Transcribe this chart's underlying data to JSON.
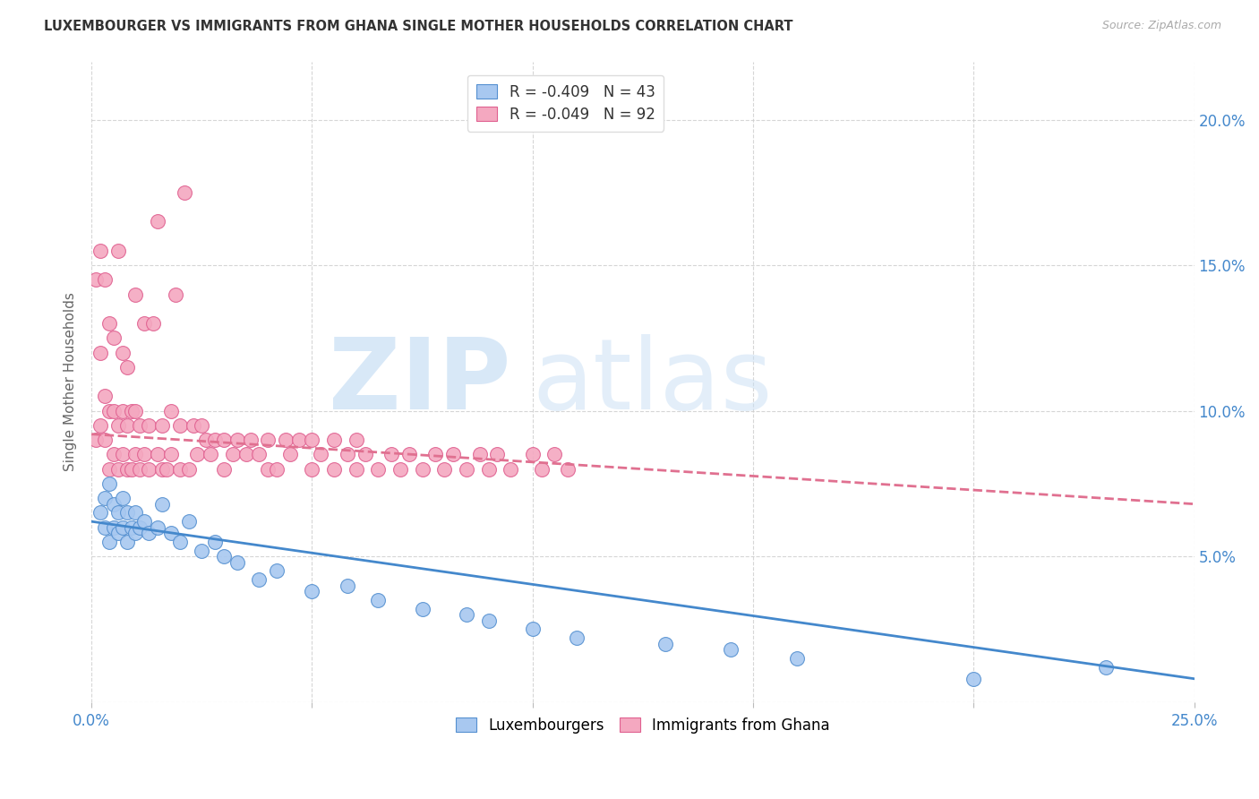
{
  "title": "LUXEMBOURGER VS IMMIGRANTS FROM GHANA SINGLE MOTHER HOUSEHOLDS CORRELATION CHART",
  "source": "Source: ZipAtlas.com",
  "ylabel": "Single Mother Households",
  "xlim": [
    0.0,
    0.25
  ],
  "ylim": [
    0.0,
    0.22
  ],
  "xtick_vals": [
    0.0,
    0.05,
    0.1,
    0.15,
    0.2,
    0.25
  ],
  "xtick_labels": [
    "0.0%",
    "",
    "",
    "",
    "",
    "25.0%"
  ],
  "ytick_vals": [
    0.0,
    0.05,
    0.1,
    0.15,
    0.2
  ],
  "ytick_labels": [
    "",
    "5.0%",
    "10.0%",
    "15.0%",
    "20.0%"
  ],
  "legend_blue_label": "R = -0.409   N = 43",
  "legend_pink_label": "R = -0.049   N = 92",
  "legend_labels_bottom": [
    "Luxembourgers",
    "Immigrants from Ghana"
  ],
  "blue_color": "#a8c8f0",
  "pink_color": "#f4a8c0",
  "blue_edge_color": "#5590d0",
  "pink_edge_color": "#e06090",
  "blue_line_color": "#4488cc",
  "pink_line_color": "#e07090",
  "watermark_zip_color": "#c8dff5",
  "watermark_atlas_color": "#c8dff5",
  "blue_trend_x": [
    0.0,
    0.25
  ],
  "blue_trend_y": [
    0.062,
    0.008
  ],
  "pink_trend_x": [
    0.0,
    0.25
  ],
  "pink_trend_y": [
    0.092,
    0.068
  ],
  "blue_points_x": [
    0.002,
    0.003,
    0.003,
    0.004,
    0.004,
    0.005,
    0.005,
    0.006,
    0.006,
    0.007,
    0.007,
    0.008,
    0.008,
    0.009,
    0.01,
    0.01,
    0.011,
    0.012,
    0.013,
    0.015,
    0.016,
    0.018,
    0.02,
    0.022,
    0.025,
    0.028,
    0.03,
    0.033,
    0.038,
    0.042,
    0.05,
    0.058,
    0.065,
    0.075,
    0.085,
    0.09,
    0.1,
    0.11,
    0.13,
    0.145,
    0.16,
    0.2,
    0.23
  ],
  "blue_points_y": [
    0.065,
    0.06,
    0.07,
    0.055,
    0.075,
    0.06,
    0.068,
    0.058,
    0.065,
    0.06,
    0.07,
    0.055,
    0.065,
    0.06,
    0.058,
    0.065,
    0.06,
    0.062,
    0.058,
    0.06,
    0.068,
    0.058,
    0.055,
    0.062,
    0.052,
    0.055,
    0.05,
    0.048,
    0.042,
    0.045,
    0.038,
    0.04,
    0.035,
    0.032,
    0.03,
    0.028,
    0.025,
    0.022,
    0.02,
    0.018,
    0.015,
    0.008,
    0.012
  ],
  "pink_points_x": [
    0.001,
    0.001,
    0.002,
    0.002,
    0.002,
    0.003,
    0.003,
    0.003,
    0.004,
    0.004,
    0.004,
    0.005,
    0.005,
    0.005,
    0.006,
    0.006,
    0.006,
    0.007,
    0.007,
    0.007,
    0.008,
    0.008,
    0.008,
    0.009,
    0.009,
    0.01,
    0.01,
    0.01,
    0.011,
    0.011,
    0.012,
    0.012,
    0.013,
    0.013,
    0.014,
    0.015,
    0.015,
    0.016,
    0.016,
    0.017,
    0.018,
    0.018,
    0.019,
    0.02,
    0.02,
    0.021,
    0.022,
    0.023,
    0.024,
    0.025,
    0.026,
    0.027,
    0.028,
    0.03,
    0.03,
    0.032,
    0.033,
    0.035,
    0.036,
    0.038,
    0.04,
    0.04,
    0.042,
    0.044,
    0.045,
    0.047,
    0.05,
    0.05,
    0.052,
    0.055,
    0.055,
    0.058,
    0.06,
    0.06,
    0.062,
    0.065,
    0.068,
    0.07,
    0.072,
    0.075,
    0.078,
    0.08,
    0.082,
    0.085,
    0.088,
    0.09,
    0.092,
    0.095,
    0.1,
    0.102,
    0.105,
    0.108
  ],
  "pink_points_y": [
    0.09,
    0.145,
    0.095,
    0.12,
    0.155,
    0.09,
    0.105,
    0.145,
    0.08,
    0.1,
    0.13,
    0.085,
    0.1,
    0.125,
    0.08,
    0.095,
    0.155,
    0.085,
    0.1,
    0.12,
    0.08,
    0.095,
    0.115,
    0.08,
    0.1,
    0.085,
    0.1,
    0.14,
    0.08,
    0.095,
    0.085,
    0.13,
    0.08,
    0.095,
    0.13,
    0.085,
    0.165,
    0.08,
    0.095,
    0.08,
    0.085,
    0.1,
    0.14,
    0.08,
    0.095,
    0.175,
    0.08,
    0.095,
    0.085,
    0.095,
    0.09,
    0.085,
    0.09,
    0.08,
    0.09,
    0.085,
    0.09,
    0.085,
    0.09,
    0.085,
    0.08,
    0.09,
    0.08,
    0.09,
    0.085,
    0.09,
    0.08,
    0.09,
    0.085,
    0.09,
    0.08,
    0.085,
    0.08,
    0.09,
    0.085,
    0.08,
    0.085,
    0.08,
    0.085,
    0.08,
    0.085,
    0.08,
    0.085,
    0.08,
    0.085,
    0.08,
    0.085,
    0.08,
    0.085,
    0.08,
    0.085,
    0.08
  ]
}
